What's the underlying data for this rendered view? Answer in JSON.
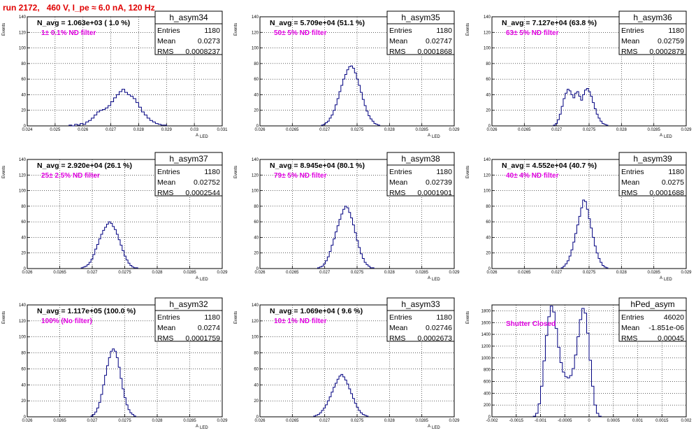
{
  "page_title": "run 2172,   460 V, I_pe ≈ 6.0 nA, 120 Hz",
  "chart_data": [
    {
      "type": "histogram",
      "name": "h_asym34",
      "stats": {
        "entries_label": "Entries",
        "entries": "1180",
        "mean_label": "Mean",
        "mean": "0.0273",
        "rms_label": "RMS",
        "rms": "0.0008237"
      },
      "annotation": "N_avg = 1.063e+03 ( 1.0 %)",
      "filter": "1± 0.1% ND filter",
      "xlabel": "A",
      "xlabel_sub": "LED",
      "ylabel": "Events",
      "xlim": [
        0.024,
        0.031
      ],
      "ylim": [
        0,
        140
      ],
      "x_ticks": [
        0.024,
        0.025,
        0.026,
        0.027,
        0.028,
        0.029,
        0.03,
        0.031
      ],
      "x_tick_labels": [
        "0.024",
        "0.025",
        "0.026",
        "0.027",
        "0.028",
        "0.029",
        "0.03",
        "0.031"
      ],
      "y_ticks": [
        0,
        20,
        40,
        60,
        80,
        100,
        120,
        140
      ],
      "bins_start": 0.0255,
      "bin_width": 0.0001,
      "counts": [
        1,
        0,
        2,
        1,
        3,
        2,
        5,
        7,
        10,
        14,
        18,
        20,
        21,
        23,
        26,
        31,
        36,
        40,
        44,
        47,
        43,
        40,
        38,
        35,
        30,
        24,
        18,
        14,
        10,
        7,
        5,
        3,
        2,
        1,
        1
      ]
    },
    {
      "type": "histogram",
      "name": "h_asym35",
      "stats": {
        "entries_label": "Entries",
        "entries": "1180",
        "mean_label": "Mean",
        "mean": "0.02747",
        "rms_label": "RMS",
        "rms": "0.0001868"
      },
      "annotation": "N_avg = 5.709e+04 (51.1 %)",
      "filter": "50± 5% ND filter",
      "xlabel": "A",
      "xlabel_sub": "LED",
      "ylabel": "Events",
      "xlim": [
        0.026,
        0.029
      ],
      "ylim": [
        0,
        140
      ],
      "x_ticks": [
        0.026,
        0.0265,
        0.027,
        0.0275,
        0.028,
        0.0285,
        0.029
      ],
      "x_tick_labels": [
        "0.026",
        "0.0265",
        "0.027",
        "0.0275",
        "0.028",
        "0.0285",
        "0.029"
      ],
      "y_ticks": [
        0,
        20,
        40,
        60,
        80,
        100,
        120,
        140
      ],
      "bins_start": 0.02695,
      "bin_width": 3e-05,
      "counts": [
        1,
        2,
        4,
        6,
        10,
        14,
        20,
        27,
        35,
        44,
        52,
        60,
        66,
        72,
        76,
        77,
        74,
        68,
        60,
        52,
        43,
        34,
        26,
        19,
        13,
        9,
        6,
        3,
        2,
        1
      ]
    },
    {
      "type": "histogram",
      "name": "h_asym36",
      "stats": {
        "entries_label": "Entries",
        "entries": "1180",
        "mean_label": "Mean",
        "mean": "0.02759",
        "rms_label": "RMS",
        "rms": "0.0002879"
      },
      "annotation": "N_avg = 7.127e+04 (63.8 %)",
      "filter": "63± 5% ND filter",
      "xlabel": "A",
      "xlabel_sub": "LED",
      "ylabel": "Events",
      "xlim": [
        0.026,
        0.029
      ],
      "ylim": [
        0,
        140
      ],
      "x_ticks": [
        0.026,
        0.0265,
        0.027,
        0.0275,
        0.028,
        0.0285,
        0.029
      ],
      "x_tick_labels": [
        "0.026",
        "0.0265",
        "0.027",
        "0.0275",
        "0.028",
        "0.0285",
        "0.029"
      ],
      "y_ticks": [
        0,
        20,
        40,
        60,
        80,
        100,
        120,
        140
      ],
      "bins_start": 0.02695,
      "bin_width": 3e-05,
      "counts": [
        1,
        3,
        8,
        15,
        25,
        35,
        42,
        47,
        45,
        40,
        36,
        42,
        44,
        38,
        33,
        40,
        46,
        48,
        44,
        38,
        30,
        22,
        15,
        10,
        6,
        3,
        2,
        1
      ]
    },
    {
      "type": "histogram",
      "name": "h_asym37",
      "stats": {
        "entries_label": "Entries",
        "entries": "1180",
        "mean_label": "Mean",
        "mean": "0.02752",
        "rms_label": "RMS",
        "rms": "0.0002544"
      },
      "annotation": "N_avg = 2.920e+04 (26.1 %)",
      "filter": "25± 2.5% ND filter",
      "xlabel": "A",
      "xlabel_sub": "LED",
      "ylabel": "Events",
      "xlim": [
        0.026,
        0.029
      ],
      "ylim": [
        0,
        140
      ],
      "x_ticks": [
        0.026,
        0.0265,
        0.027,
        0.0275,
        0.028,
        0.0285,
        0.029
      ],
      "x_tick_labels": [
        "0.026",
        "0.0265",
        "0.027",
        "0.0275",
        "0.028",
        "0.0285",
        "0.029"
      ],
      "y_ticks": [
        0,
        20,
        40,
        60,
        80,
        100,
        120,
        140
      ],
      "bins_start": 0.02683,
      "bin_width": 3e-05,
      "counts": [
        1,
        2,
        3,
        5,
        8,
        12,
        18,
        25,
        31,
        38,
        44,
        49,
        53,
        57,
        60,
        58,
        54,
        50,
        44,
        37,
        30,
        23,
        16,
        11,
        7,
        4,
        2,
        1,
        1
      ]
    },
    {
      "type": "histogram",
      "name": "h_asym38",
      "stats": {
        "entries_label": "Entries",
        "entries": "1180",
        "mean_label": "Mean",
        "mean": "0.02739",
        "rms_label": "RMS",
        "rms": "0.0001901"
      },
      "annotation": "N_avg = 8.945e+04 (80.1 %)",
      "filter": "79± 5% ND filter",
      "xlabel": "A",
      "xlabel_sub": "LED",
      "ylabel": "Events",
      "xlim": [
        0.026,
        0.029
      ],
      "ylim": [
        0,
        140
      ],
      "x_ticks": [
        0.026,
        0.0265,
        0.027,
        0.0275,
        0.028,
        0.0285,
        0.029
      ],
      "x_tick_labels": [
        "0.026",
        "0.0265",
        "0.027",
        "0.0275",
        "0.028",
        "0.0285",
        "0.029"
      ],
      "y_ticks": [
        0,
        20,
        40,
        60,
        80,
        100,
        120,
        140
      ],
      "bins_start": 0.02689,
      "bin_width": 3e-05,
      "counts": [
        1,
        2,
        3,
        6,
        10,
        15,
        22,
        30,
        38,
        47,
        55,
        63,
        70,
        76,
        80,
        78,
        72,
        65,
        56,
        46,
        36,
        27,
        19,
        13,
        8,
        5,
        3,
        1,
        1
      ]
    },
    {
      "type": "histogram",
      "name": "h_asym39",
      "stats": {
        "entries_label": "Entries",
        "entries": "1180",
        "mean_label": "Mean",
        "mean": "0.0275",
        "rms_label": "RMS",
        "rms": "0.0001688"
      },
      "annotation": "N_avg = 4.552e+04 (40.7 %)",
      "filter": "40± 4% ND filter",
      "xlabel": "A",
      "xlabel_sub": "LED",
      "ylabel": "Events",
      "xlim": [
        0.026,
        0.029
      ],
      "ylim": [
        0,
        140
      ],
      "x_ticks": [
        0.026,
        0.0265,
        0.027,
        0.0275,
        0.028,
        0.0285,
        0.029
      ],
      "x_tick_labels": [
        "0.026",
        "0.0265",
        "0.027",
        "0.0275",
        "0.028",
        "0.0285",
        "0.029"
      ],
      "y_ticks": [
        0,
        20,
        40,
        60,
        80,
        100,
        120,
        140
      ],
      "bins_start": 0.02707,
      "bin_width": 3e-05,
      "counts": [
        1,
        3,
        6,
        10,
        16,
        24,
        34,
        45,
        56,
        67,
        78,
        88,
        86,
        76,
        64,
        52,
        40,
        29,
        20,
        13,
        8,
        4,
        2,
        1
      ]
    },
    {
      "type": "histogram",
      "name": "h_asym32",
      "stats": {
        "entries_label": "Entries",
        "entries": "1180",
        "mean_label": "Mean",
        "mean": "0.0274",
        "rms_label": "RMS",
        "rms": "0.0001759"
      },
      "annotation": "N_avg = 1.117e+05 (100.0 %)",
      "filter": "100% (No filter)",
      "xlabel": "A",
      "xlabel_sub": "LED",
      "ylabel": "Events",
      "xlim": [
        0.026,
        0.029
      ],
      "ylim": [
        0,
        140
      ],
      "x_ticks": [
        0.026,
        0.0265,
        0.027,
        0.0275,
        0.028,
        0.0285,
        0.029
      ],
      "x_tick_labels": [
        "0.026",
        "0.0265",
        "0.027",
        "0.0275",
        "0.028",
        "0.0285",
        "0.029"
      ],
      "y_ticks": [
        0,
        20,
        40,
        60,
        80,
        100,
        120,
        140
      ],
      "bins_start": 0.02698,
      "bin_width": 3e-05,
      "counts": [
        1,
        3,
        6,
        11,
        18,
        28,
        40,
        52,
        64,
        74,
        82,
        85,
        82,
        74,
        62,
        48,
        35,
        24,
        15,
        9,
        5,
        3,
        1
      ]
    },
    {
      "type": "histogram",
      "name": "h_asym33",
      "stats": {
        "entries_label": "Entries",
        "entries": "1180",
        "mean_label": "Mean",
        "mean": "0.02746",
        "rms_label": "RMS",
        "rms": "0.0002673"
      },
      "annotation": "N_avg = 1.069e+04 ( 9.6 %)",
      "filter": "10± 1% ND filter",
      "xlabel": "A",
      "xlabel_sub": "LED",
      "ylabel": "Events",
      "xlim": [
        0.026,
        0.029
      ],
      "ylim": [
        0,
        140
      ],
      "x_ticks": [
        0.026,
        0.0265,
        0.027,
        0.0275,
        0.028,
        0.0285,
        0.029
      ],
      "x_tick_labels": [
        "0.026",
        "0.0265",
        "0.027",
        "0.0275",
        "0.028",
        "0.0285",
        "0.029"
      ],
      "y_ticks": [
        0,
        20,
        40,
        60,
        80,
        100,
        120,
        140
      ],
      "bins_start": 0.02683,
      "bin_width": 3e-05,
      "counts": [
        1,
        2,
        3,
        5,
        8,
        11,
        15,
        20,
        25,
        31,
        37,
        42,
        47,
        51,
        53,
        50,
        46,
        41,
        35,
        29,
        23,
        17,
        12,
        8,
        5,
        3,
        2,
        1
      ]
    },
    {
      "type": "histogram",
      "name": "hPed_asym",
      "stats": {
        "entries_label": "Entries",
        "entries": "46020",
        "mean_label": "Mean",
        "mean": "-1.851e-06",
        "rms_label": "RMS",
        "rms": "0.00045"
      },
      "annotation": "",
      "filter": "Shutter Closed",
      "xlabel": "",
      "xlabel_sub": "",
      "ylabel": "Events",
      "xlim": [
        -0.002,
        0.002
      ],
      "ylim": [
        0,
        1900
      ],
      "x_ticks": [
        -0.002,
        -0.0015,
        -0.001,
        -0.0005,
        0,
        0.0005,
        0.001,
        0.0015,
        0.002
      ],
      "x_tick_labels": [
        "-0.002",
        "-0.0015",
        "-0.001",
        "-0.0005",
        "0",
        "0.0005",
        "0.001",
        "0.0015",
        "0.002"
      ],
      "y_ticks": [
        0,
        200,
        400,
        600,
        800,
        1000,
        1200,
        1400,
        1600,
        1800
      ],
      "bins_start": -0.00115,
      "bin_width": 5e-05,
      "counts": [
        10,
        60,
        220,
        520,
        950,
        1380,
        1700,
        1880,
        1780,
        1500,
        1180,
        920,
        760,
        680,
        660,
        700,
        820,
        1050,
        1360,
        1650,
        1840,
        1760,
        1420,
        960,
        520,
        200,
        60,
        10
      ]
    }
  ]
}
